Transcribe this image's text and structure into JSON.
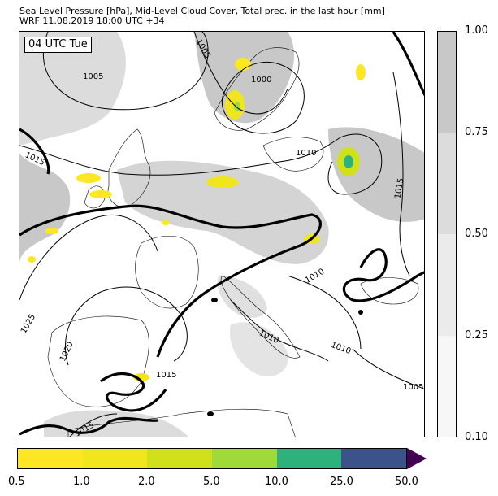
{
  "title": {
    "line1": "Sea Level Pressure [hPa], Mid-Level Cloud Cover, Total prec. in the last hour [mm]",
    "line2": "WRF 11.08.2019 18:00 UTC +34"
  },
  "map": {
    "time_label": "04 UTC Tue",
    "isobar_labels": [
      "1005",
      "1005",
      "1000",
      "1015",
      "1010",
      "1015",
      "1010",
      "1025",
      "1020",
      "1015",
      "1010",
      "1010",
      "1005",
      "1015"
    ]
  },
  "cloud_colorbar": {
    "ticks": [
      "1.00",
      "0.75",
      "0.50",
      "0.25",
      "0.10"
    ],
    "colors": [
      "#c8c8c8",
      "#dcdcdc",
      "#ebebeb",
      "#f7f7f7"
    ]
  },
  "precip_colorbar": {
    "ticks": [
      "0.5",
      "1.0",
      "2.0",
      "5.0",
      "10.0",
      "25.0",
      "50.0"
    ],
    "colors": [
      "#fde725",
      "#f1e51d",
      "#d0e11c",
      "#a0da39",
      "#2db27d",
      "#3b528b",
      "#440154"
    ]
  }
}
